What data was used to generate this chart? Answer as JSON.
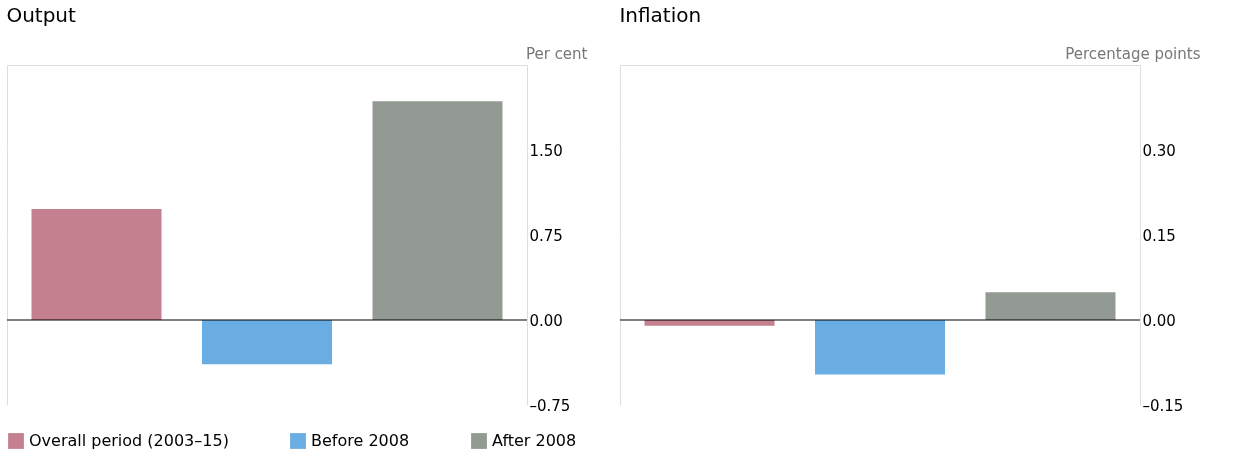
{
  "chart_data": [
    {
      "type": "bar",
      "title": "Output",
      "ylabel": "Per cent",
      "categories": [
        null
      ],
      "series": [
        {
          "name": "Overall period (2003–15)",
          "color": "#c4808f",
          "values": [
            0.98
          ]
        },
        {
          "name": "Before 2008",
          "color": "#6aade2",
          "values": [
            -0.39
          ]
        },
        {
          "name": "After 2008",
          "color": "#939a93",
          "values": [
            1.93
          ]
        }
      ],
      "ylim": [
        -0.75,
        2.25
      ],
      "yticks": [
        {
          "value": -0.75,
          "label": "–0.75"
        },
        {
          "value": 0,
          "label": "0.00"
        },
        {
          "value": 0.75,
          "label": "0.75"
        },
        {
          "value": 1.5,
          "label": "1.50"
        }
      ],
      "ref_lines": [
        {
          "axis": "y",
          "value": 0,
          "color": "#000000"
        }
      ],
      "grid": "y",
      "legend": "bottom"
    },
    {
      "type": "bar",
      "title": "Inflation",
      "ylabel": "Percentage points",
      "categories": [
        null
      ],
      "series": [
        {
          "name": "Overall period (2003–15)",
          "color": "#c4808f",
          "values": [
            -0.01
          ]
        },
        {
          "name": "Before 2008",
          "color": "#6aade2",
          "values": [
            -0.096
          ]
        },
        {
          "name": "After 2008",
          "color": "#939a93",
          "values": [
            0.049
          ]
        }
      ],
      "ylim": [
        -0.15,
        0.45
      ],
      "yticks": [
        {
          "value": -0.15,
          "label": "–0.15"
        },
        {
          "value": 0,
          "label": "0.00"
        },
        {
          "value": 0.15,
          "label": "0.15"
        },
        {
          "value": 0.3,
          "label": "0.30"
        }
      ],
      "ref_lines": [
        {
          "axis": "y",
          "value": 0,
          "color": "#000000"
        }
      ],
      "grid": "y",
      "legend": "bottom"
    }
  ]
}
